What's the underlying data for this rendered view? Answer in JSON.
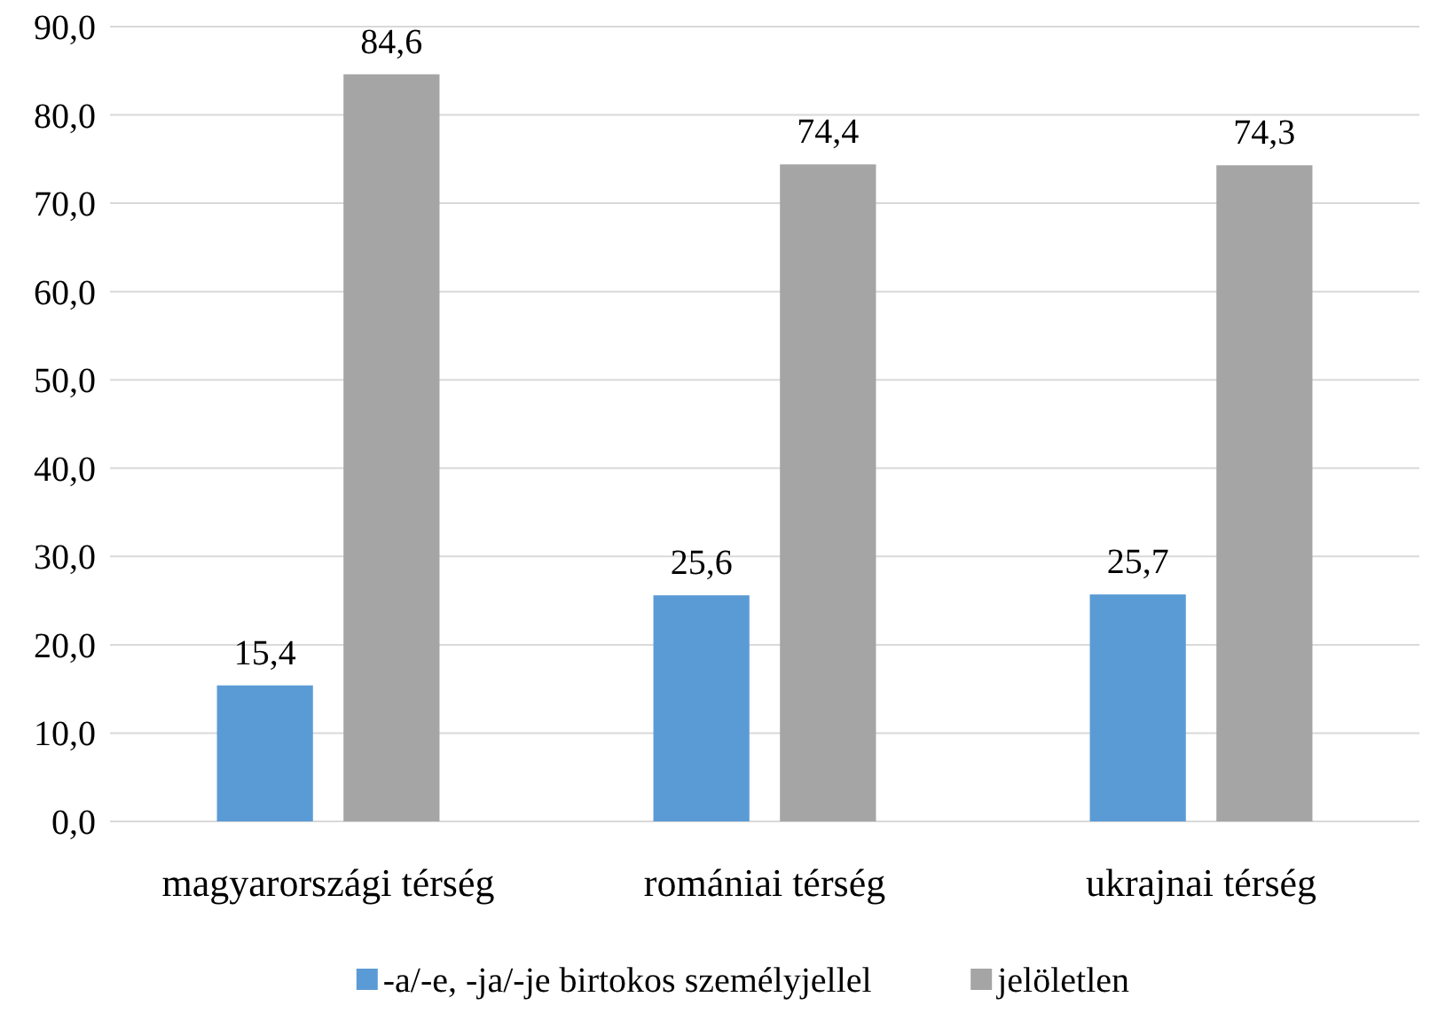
{
  "chart_data": {
    "type": "bar",
    "categories": [
      "magyarországi térség",
      "romániai térség",
      "ukrajnai térség"
    ],
    "series": [
      {
        "name": "-a/-e, -ja/-je birtokos személyjellel",
        "color": "#5b9bd5",
        "values": [
          15.4,
          25.6,
          25.7
        ],
        "value_labels": [
          "15,4",
          "25,6",
          "25,7"
        ]
      },
      {
        "name": "jelöletlen",
        "color": "#a5a5a5",
        "values": [
          84.6,
          74.4,
          74.3
        ],
        "value_labels": [
          "84,6",
          "74,4",
          "74,3"
        ]
      }
    ],
    "ylim": [
      0,
      90
    ],
    "yticks": [
      {
        "value": 0,
        "label": "0,0"
      },
      {
        "value": 10,
        "label": "10,0"
      },
      {
        "value": 20,
        "label": "20,0"
      },
      {
        "value": 30,
        "label": "30,0"
      },
      {
        "value": 40,
        "label": "40,0"
      },
      {
        "value": 50,
        "label": "50,0"
      },
      {
        "value": 60,
        "label": "60,0"
      },
      {
        "value": 70,
        "label": "70,0"
      },
      {
        "value": 80,
        "label": "80,0"
      },
      {
        "value": 90,
        "label": "90,0"
      }
    ],
    "grid": "y",
    "legend": "bottom"
  }
}
